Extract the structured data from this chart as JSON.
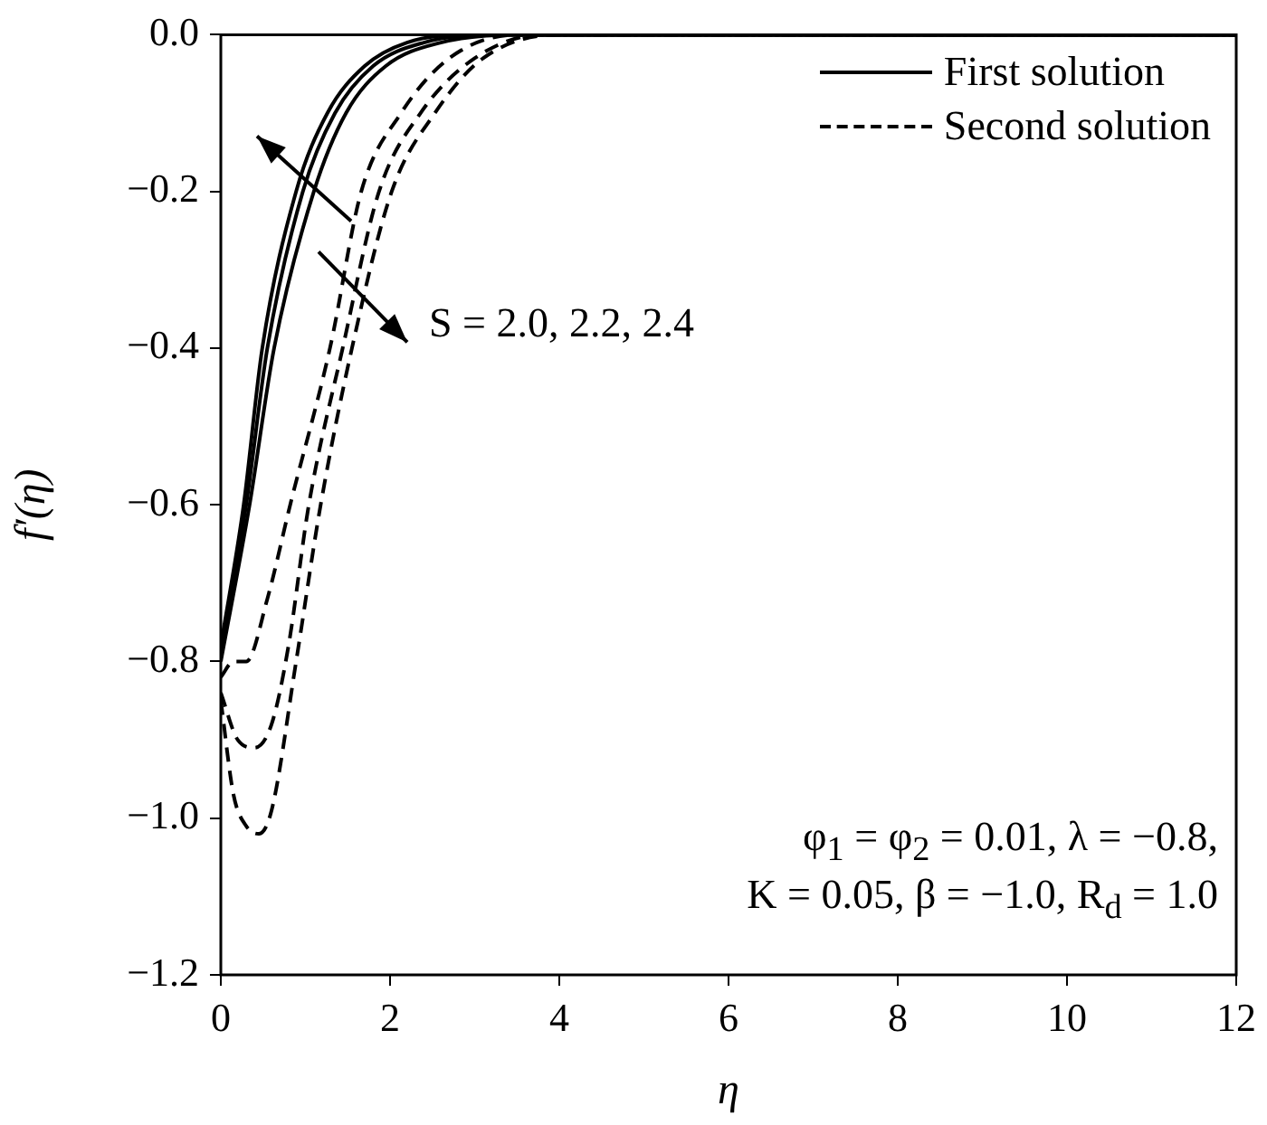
{
  "chart_data": {
    "type": "line",
    "xlabel": "η",
    "ylabel": "f′(η)",
    "xlim": [
      0,
      12
    ],
    "xticks": [
      0,
      2,
      4,
      6,
      8,
      10,
      12
    ],
    "ylim": [
      -1.2,
      0
    ],
    "yticks": [
      {
        "value": -1.2,
        "label": "−1.2"
      },
      {
        "value": -1.0,
        "label": "−1.0"
      },
      {
        "value": -0.8,
        "label": "−0.8"
      },
      {
        "value": -0.6,
        "label": "−0.6"
      },
      {
        "value": -0.4,
        "label": "−0.4"
      },
      {
        "value": -0.2,
        "label": "−0.2"
      },
      {
        "value": 0,
        "label": "0.0"
      }
    ],
    "grid": false,
    "legend": "top right",
    "marker": "none",
    "series": [
      {
        "name": "First solution",
        "color": "#000000",
        "line_style": "solid",
        "x": [
          0,
          0.27,
          0.49,
          0.89,
          1.26,
          1.7,
          2.2,
          3,
          12
        ],
        "values": [
          -0.78,
          -0.6,
          -0.4,
          -0.2,
          -0.1,
          -0.04,
          -0.01,
          0,
          0
        ]
      },
      {
        "color": "#000000",
        "line_style": "solid",
        "x": [
          0,
          0.3,
          0.55,
          0.97,
          1.35,
          1.8,
          2.4,
          3.2,
          12
        ],
        "values": [
          -0.79,
          -0.6,
          -0.4,
          -0.2,
          -0.1,
          -0.04,
          -0.01,
          0,
          0
        ]
      },
      {
        "color": "#000000",
        "line_style": "solid",
        "x": [
          0,
          0.34,
          0.63,
          1.1,
          1.48,
          1.95,
          2.6,
          3.5,
          12
        ],
        "values": [
          -0.8,
          -0.6,
          -0.4,
          -0.2,
          -0.1,
          -0.04,
          -0.01,
          0,
          0
        ]
      },
      {
        "name": "Second solution",
        "color": "#000000",
        "line_style": "dashed",
        "x": [
          0,
          0.15,
          0.3,
          0.55,
          0.82,
          1.29,
          1.66,
          2.13,
          2.7,
          3.5,
          12
        ],
        "values": [
          -0.82,
          -0.8,
          -0.8,
          -0.72,
          -0.6,
          -0.4,
          -0.2,
          -0.1,
          -0.03,
          0,
          0
        ]
      },
      {
        "color": "#000000",
        "line_style": "dashed",
        "x": [
          0,
          0.2,
          0.4,
          0.6,
          0.8,
          1.04,
          1.44,
          1.87,
          2.36,
          3,
          3.8,
          12
        ],
        "values": [
          -0.84,
          -0.9,
          -0.91,
          -0.88,
          -0.78,
          -0.6,
          -0.4,
          -0.2,
          -0.1,
          -0.03,
          0,
          0
        ]
      },
      {
        "color": "#000000",
        "line_style": "dashed",
        "x": [
          0,
          0.15,
          0.3,
          0.45,
          0.6,
          0.89,
          1.18,
          1.55,
          2.02,
          2.53,
          3.1,
          4,
          12
        ],
        "values": [
          -0.85,
          -0.97,
          -1.01,
          -1.02,
          -0.99,
          -0.8,
          -0.6,
          -0.4,
          -0.2,
          -0.1,
          -0.03,
          0,
          0
        ]
      }
    ],
    "annotations": [
      "S = 2.0, 2.2, 2.4",
      "φ$_{1}$ = φ$_{2}$ = 0.01, λ = −0.8,",
      "K = 0.05, β = −1.0, R$_{d}$ = 1.0"
    ]
  }
}
